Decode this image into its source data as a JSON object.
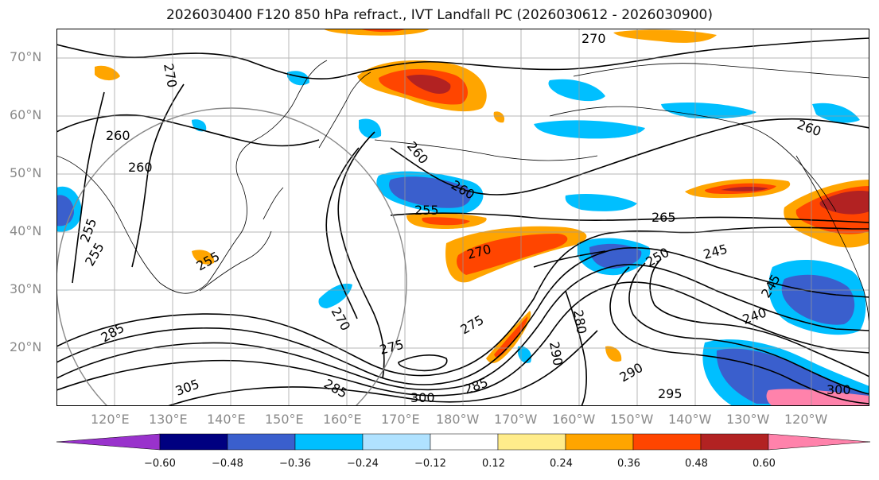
{
  "title": "2026030400 F120 850 hPa refract., IVT Landfall PC (2026030612 - 2026030900)",
  "lat_labels": [
    "70°N",
    "60°N",
    "50°N",
    "40°N",
    "30°N",
    "20°N"
  ],
  "lon_labels": [
    "120°E",
    "130°E",
    "140°E",
    "150°E",
    "160°E",
    "170°E",
    "180°W",
    "170°W",
    "160°W",
    "150°W",
    "140°W",
    "130°W",
    "120°W"
  ],
  "colorbar": {
    "colors": [
      "#9932cc",
      "#000080",
      "#3a5fcd",
      "#00bfff",
      "#b0e2ff",
      "#ffffff",
      "#ffec8b",
      "#ffa500",
      "#ff4500",
      "#b22222",
      "#ff82ab"
    ],
    "ticks": [
      "−0.60",
      "−0.48",
      "−0.36",
      "−0.24",
      "−0.12",
      "0.12",
      "0.24",
      "0.36",
      "0.48",
      "0.60"
    ]
  },
  "contour_labels": [
    "270",
    "270",
    "260",
    "260",
    "260",
    "260",
    "255",
    "255",
    "265",
    "270",
    "270",
    "275",
    "275",
    "280",
    "290",
    "290",
    "285",
    "295",
    "300",
    "300",
    "305",
    "285",
    "285",
    "250",
    "245",
    "245",
    "240",
    "260",
    "255",
    "255"
  ]
}
